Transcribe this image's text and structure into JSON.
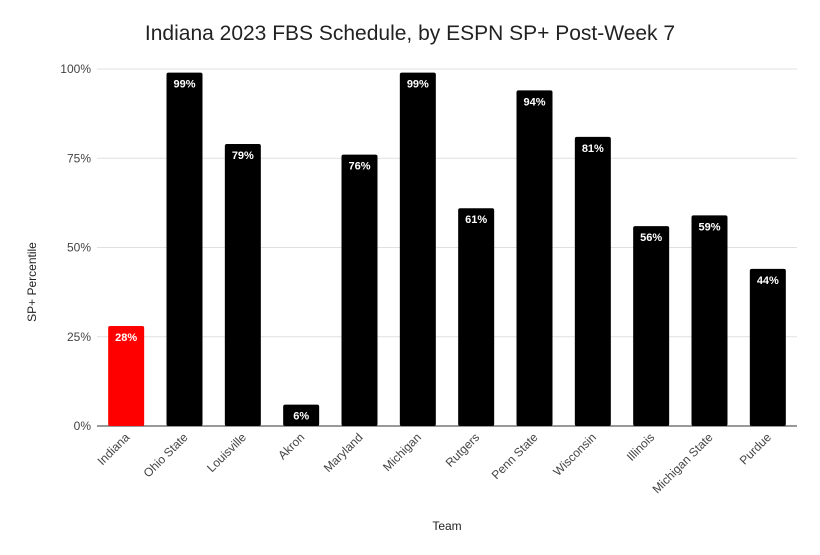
{
  "chart_data": {
    "type": "bar",
    "title": "Indiana 2023 FBS Schedule, by ESPN SP+ Post-Week 7",
    "xlabel": "Team",
    "ylabel": "SP+ Percentile",
    "categories": [
      "Indiana",
      "Ohio State",
      "Louisville",
      "Akron",
      "Maryland",
      "Michigan",
      "Rutgers",
      "Penn State",
      "Wisconsin",
      "Illinois",
      "Michigan State",
      "Purdue"
    ],
    "values": [
      28,
      99,
      79,
      6,
      76,
      99,
      61,
      94,
      81,
      56,
      59,
      44
    ],
    "data_labels": [
      "28%",
      "99%",
      "79%",
      "6%",
      "76%",
      "99%",
      "61%",
      "94%",
      "81%",
      "56%",
      "59%",
      "44%"
    ],
    "ylim": [
      0,
      100
    ],
    "yticks": [
      0,
      25,
      50,
      75,
      100
    ],
    "ytick_labels": [
      "0%",
      "25%",
      "50%",
      "75%",
      "100%"
    ],
    "grid": true,
    "legend": "none",
    "colors": {
      "highlight": "#ff0000",
      "default": "#000000",
      "label": "#ffffff"
    },
    "highlight_category": "Indiana"
  }
}
